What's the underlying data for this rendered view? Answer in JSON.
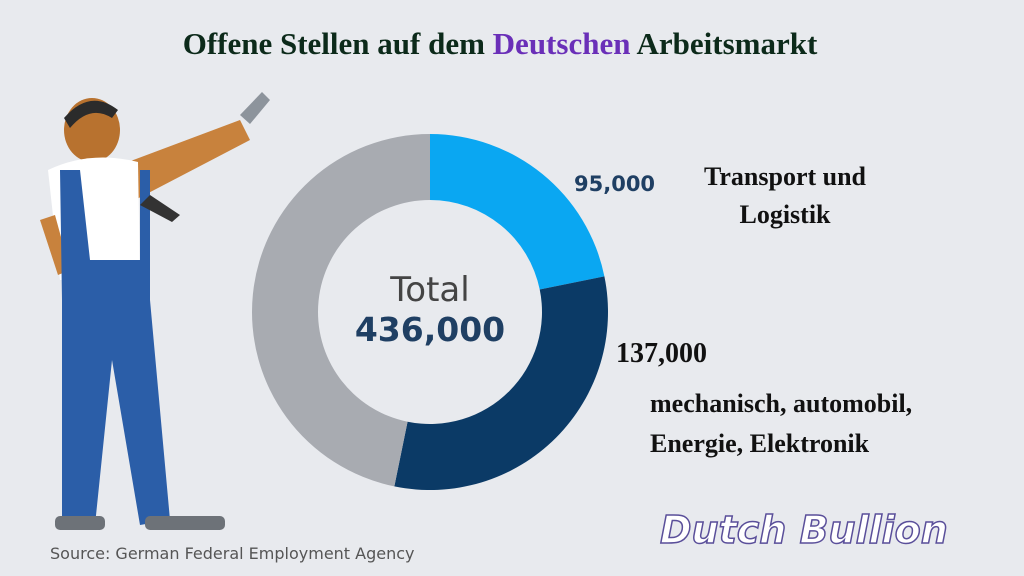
{
  "chart_data": {
    "type": "donut",
    "title_parts": [
      "Offene Stellen auf dem",
      "Deutschen",
      "Arbeitsmarkt"
    ],
    "title_colors": [
      "#0c2a1a",
      "#6a2fb8",
      "#0c2a1a"
    ],
    "center_text": [
      "Total",
      "436,000"
    ],
    "categories": [
      "Transport und Logistik",
      "mechanisch, automobil, Energie, Elektronik",
      null
    ],
    "values": [
      95000,
      137000,
      204000
    ],
    "value_labels": [
      "95,000",
      "137,000",
      null
    ],
    "colors": [
      "#0aa7f2",
      "#0b3a66",
      "#a8abb1"
    ],
    "source": "Source: German Federal Employment Agency",
    "watermark": "Dutch Bullion"
  }
}
